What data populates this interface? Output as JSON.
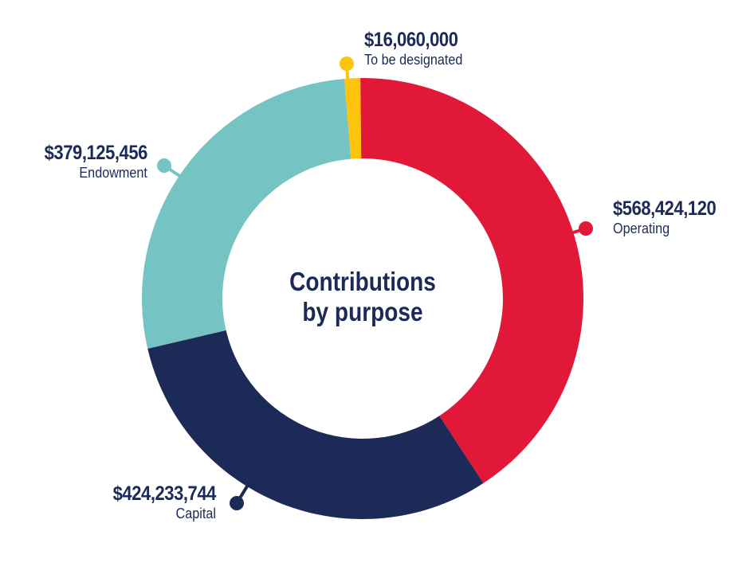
{
  "chart_data": {
    "type": "pie",
    "donut": true,
    "title": "Contributions by purpose",
    "title_lines": [
      "Contributions",
      "by purpose"
    ],
    "slices": [
      {
        "label": "Operating",
        "value": 568424120,
        "display": "$568,424,120",
        "color": "#e11837"
      },
      {
        "label": "Capital",
        "value": 424233744,
        "display": "$424,233,744",
        "color": "#1b2a57"
      },
      {
        "label": "Endowment",
        "value": 379125456,
        "display": "$379,125,456",
        "color": "#75c3c2"
      },
      {
        "label": "To be designated",
        "value": 16060000,
        "display": "$16,060,000",
        "color": "#fec40d"
      }
    ]
  }
}
